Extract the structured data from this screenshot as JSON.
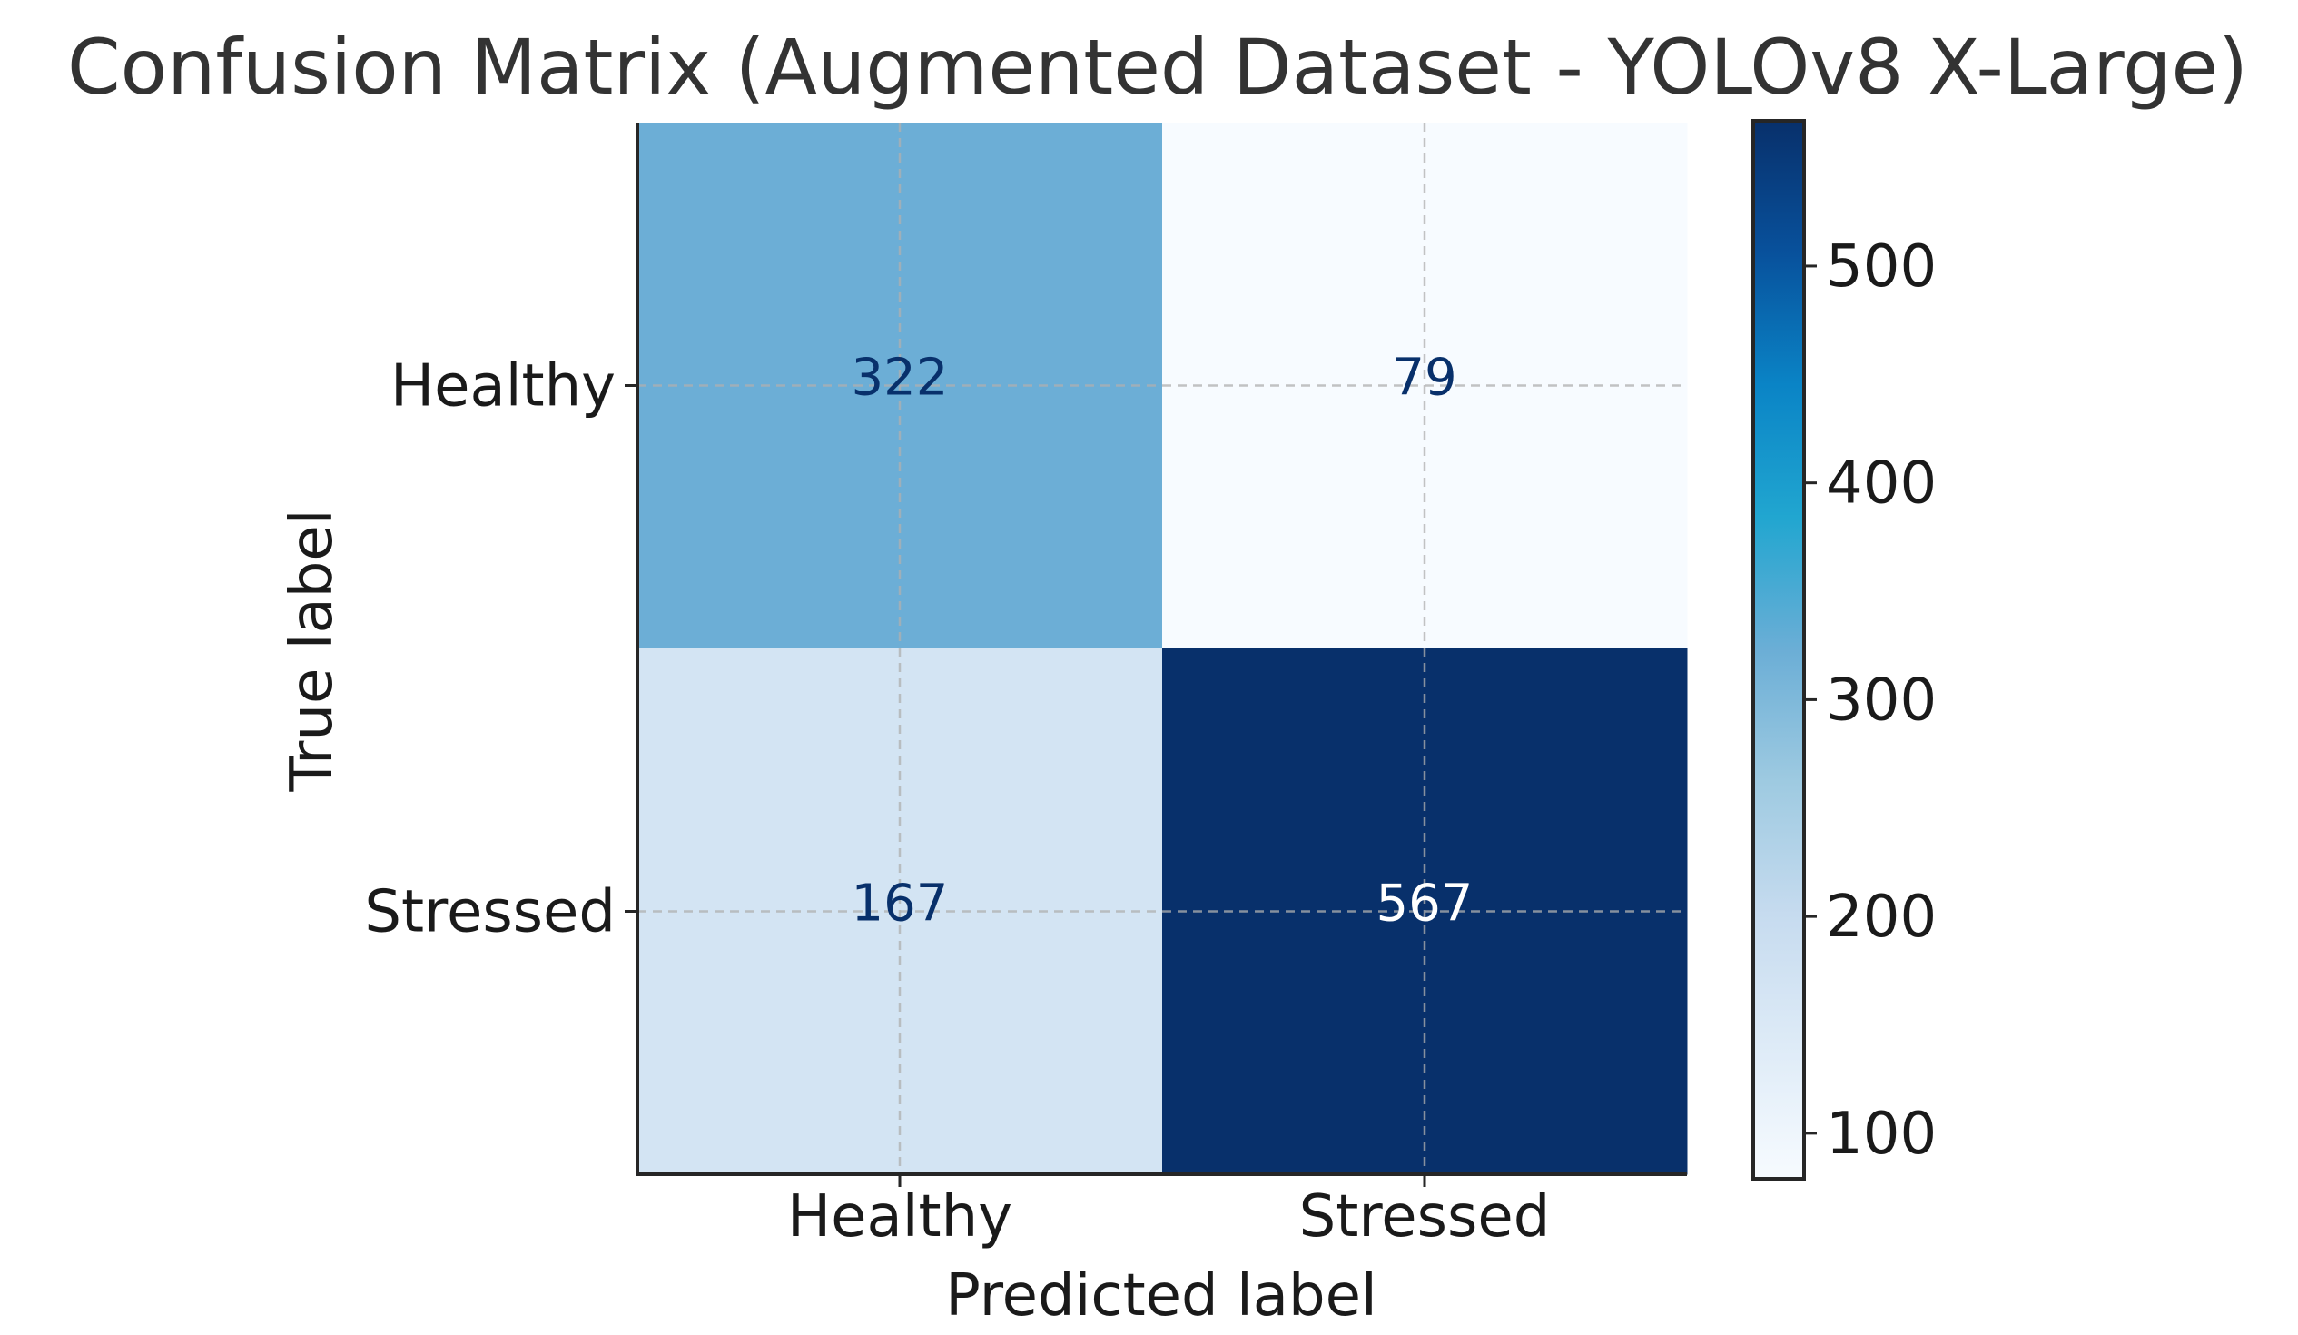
{
  "chart_data": {
    "type": "heatmap",
    "title": "Confusion Matrix (Augmented Dataset - YOLOv8 X-Large)",
    "xlabel": "Predicted label",
    "ylabel": "True label",
    "x_categories": [
      "Healthy",
      "Stressed"
    ],
    "y_categories": [
      "Healthy",
      "Stressed"
    ],
    "values": [
      [
        322,
        79
      ],
      [
        167,
        567
      ]
    ],
    "colorbar": {
      "min": 79,
      "max": 567,
      "ticks": [
        100,
        200,
        300,
        400,
        500
      ],
      "colormap": "Blues"
    },
    "grid": true
  }
}
